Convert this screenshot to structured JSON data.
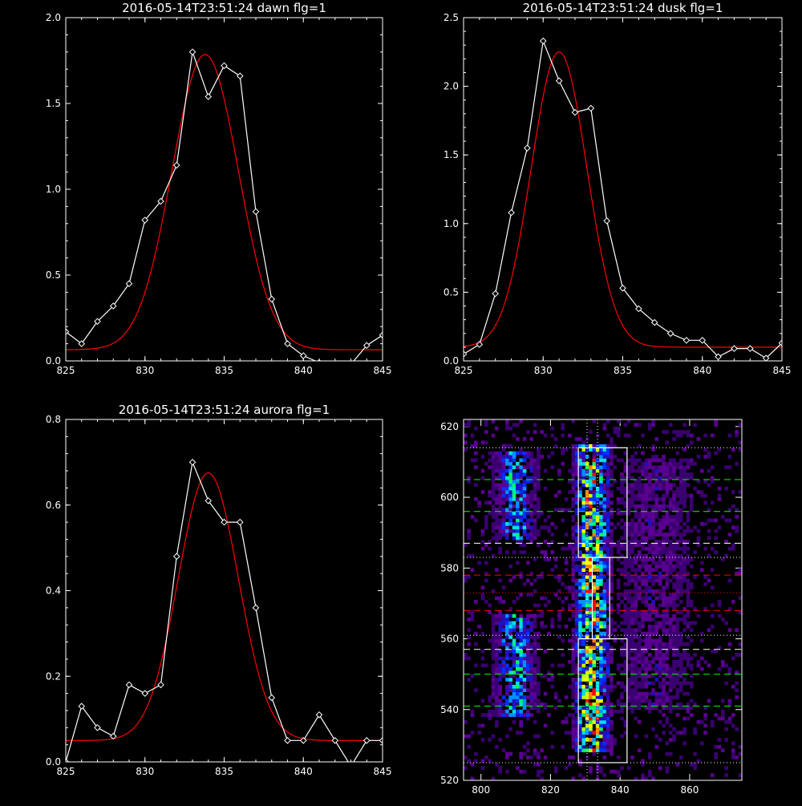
{
  "chart_data": [
    {
      "id": "dawn",
      "type": "line",
      "title": "2016-05-14T23:51:24 dawn flg=1",
      "xlim": [
        825,
        845
      ],
      "ylim": [
        0,
        2.0
      ],
      "xticks": [
        825,
        830,
        835,
        840,
        845
      ],
      "yticks": [
        0.0,
        0.5,
        1.0,
        1.5,
        2.0
      ],
      "ytick_labels": [
        "0.0",
        "0.5",
        "1.0",
        "1.5",
        "2.0"
      ],
      "grid": false,
      "series": [
        {
          "kind": "data",
          "color": "#ffffff",
          "marker": "diamond",
          "x": [
            825,
            826,
            827,
            828,
            829,
            830,
            831,
            832,
            833,
            834,
            835,
            836,
            837,
            838,
            839,
            840,
            841,
            842,
            843,
            844,
            845
          ],
          "y": [
            0.17,
            0.1,
            0.23,
            0.32,
            0.45,
            0.82,
            0.93,
            1.14,
            1.8,
            1.54,
            1.72,
            1.66,
            0.87,
            0.36,
            0.1,
            0.03,
            -0.01,
            -0.02,
            -0.02,
            0.09,
            0.15
          ]
        },
        {
          "kind": "gaussian_fit",
          "color": "#ff0000",
          "amplitude": 1.72,
          "center": 833.8,
          "sigma": 2.1,
          "offset": 0.065
        }
      ]
    },
    {
      "id": "dusk",
      "type": "line",
      "title": "2016-05-14T23:51:24 dusk flg=1",
      "xlim": [
        825,
        845
      ],
      "ylim": [
        0,
        2.5
      ],
      "xticks": [
        825,
        830,
        835,
        840,
        845
      ],
      "yticks": [
        0.0,
        0.5,
        1.0,
        1.5,
        2.0,
        2.5
      ],
      "ytick_labels": [
        "0.0",
        "0.5",
        "1.0",
        "1.5",
        "2.0",
        "2.5"
      ],
      "grid": false,
      "series": [
        {
          "kind": "data",
          "color": "#ffffff",
          "marker": "diamond",
          "x": [
            825,
            826,
            827,
            828,
            829,
            830,
            831,
            832,
            833,
            834,
            835,
            836,
            837,
            838,
            839,
            840,
            841,
            842,
            843,
            844,
            845
          ],
          "y": [
            0.05,
            0.12,
            0.49,
            1.08,
            1.55,
            2.33,
            2.04,
            1.81,
            1.84,
            1.02,
            0.53,
            0.38,
            0.28,
            0.2,
            0.15,
            0.15,
            0.03,
            0.09,
            0.09,
            0.02,
            0.13
          ]
        },
        {
          "kind": "gaussian_fit",
          "color": "#ff0000",
          "amplitude": 2.15,
          "center": 831.0,
          "sigma": 1.75,
          "offset": 0.1
        }
      ]
    },
    {
      "id": "aurora",
      "type": "line",
      "title": "2016-05-14T23:51:24 aurora flg=1",
      "xlim": [
        825,
        845
      ],
      "ylim": [
        0,
        0.8
      ],
      "xticks": [
        825,
        830,
        835,
        840,
        845
      ],
      "yticks": [
        0.0,
        0.2,
        0.4,
        0.6,
        0.8
      ],
      "ytick_labels": [
        "0.0",
        "0.2",
        "0.4",
        "0.6",
        "0.8"
      ],
      "grid": false,
      "series": [
        {
          "kind": "data",
          "color": "#ffffff",
          "marker": "diamond",
          "x": [
            825,
            826,
            827,
            828,
            829,
            830,
            831,
            832,
            833,
            834,
            835,
            836,
            837,
            838,
            839,
            840,
            841,
            842,
            843,
            844,
            845
          ],
          "y": [
            0.0,
            0.13,
            0.08,
            0.06,
            0.18,
            0.16,
            0.18,
            0.48,
            0.7,
            0.61,
            0.56,
            0.56,
            0.36,
            0.15,
            0.05,
            0.05,
            0.11,
            0.05,
            -0.01,
            0.05,
            0.05
          ]
        },
        {
          "kind": "gaussian_fit",
          "color": "#ff0000",
          "amplitude": 0.625,
          "center": 834.0,
          "sigma": 1.9,
          "offset": 0.05
        }
      ]
    },
    {
      "id": "image",
      "type": "heatmap",
      "title": "",
      "xlim": [
        795,
        875
      ],
      "ylim": [
        520,
        622
      ],
      "xticks": [
        800,
        820,
        840,
        860
      ],
      "yticks": [
        520,
        540,
        560,
        580,
        600,
        620
      ],
      "grid": false,
      "colormap": [
        "#000000",
        "#3a0070",
        "#5a0090",
        "#2010c0",
        "#0030ff",
        "#0090ff",
        "#00e0e0",
        "#00ff60",
        "#c0ff00",
        "#ffff00",
        "#ff8000",
        "#ff0000"
      ],
      "emission_bands": [
        {
          "x_center": 810,
          "x_width": 3.5,
          "y_ranges": [
            [
              538,
              566
            ],
            [
              588,
              612
            ]
          ],
          "peak": 0.55
        },
        {
          "x_center": 832,
          "x_width": 3.0,
          "y_ranges": [
            [
              528,
              614
            ]
          ],
          "peak": 0.9
        },
        {
          "x_center": 850,
          "x_width": 6,
          "y_ranges": [
            [
              540,
              610
            ]
          ],
          "peak": 0.2
        }
      ],
      "boxes": [
        {
          "x": [
            828,
            842
          ],
          "y": [
            583,
            614
          ],
          "color": "#ffffff"
        },
        {
          "x": [
            828,
            842
          ],
          "y": [
            525,
            560
          ],
          "color": "#ffffff"
        },
        {
          "x": [
            832,
            837
          ],
          "y": [
            560,
            583
          ],
          "color": "#ffffff"
        }
      ],
      "hlines": [
        {
          "y": 614,
          "color": "#ffffff",
          "style": "dotted"
        },
        {
          "y": 605,
          "color": "#00ff00",
          "style": "dashed"
        },
        {
          "y": 596,
          "color": "#00ff00",
          "style": "dashed"
        },
        {
          "y": 587,
          "color": "#ffffff",
          "style": "dashed"
        },
        {
          "y": 583,
          "color": "#ffffff",
          "style": "dotted"
        },
        {
          "y": 578,
          "color": "#ff0000",
          "style": "dashed"
        },
        {
          "y": 573,
          "color": "#ff0000",
          "style": "dotted"
        },
        {
          "y": 568,
          "color": "#ff0000",
          "style": "dashed"
        },
        {
          "y": 561,
          "color": "#ffffff",
          "style": "dotted"
        },
        {
          "y": 557,
          "color": "#ffffff",
          "style": "dashed"
        },
        {
          "y": 550,
          "color": "#00ff00",
          "style": "dashed"
        },
        {
          "y": 541,
          "color": "#00ff00",
          "style": "dashed"
        },
        {
          "y": 525,
          "color": "#ffffff",
          "style": "dotted"
        }
      ],
      "vlines": [
        {
          "x": 830.5,
          "color": "#ffffff",
          "style": "dotted"
        },
        {
          "x": 833.5,
          "color": "#ffffff",
          "style": "dotted"
        }
      ]
    }
  ]
}
